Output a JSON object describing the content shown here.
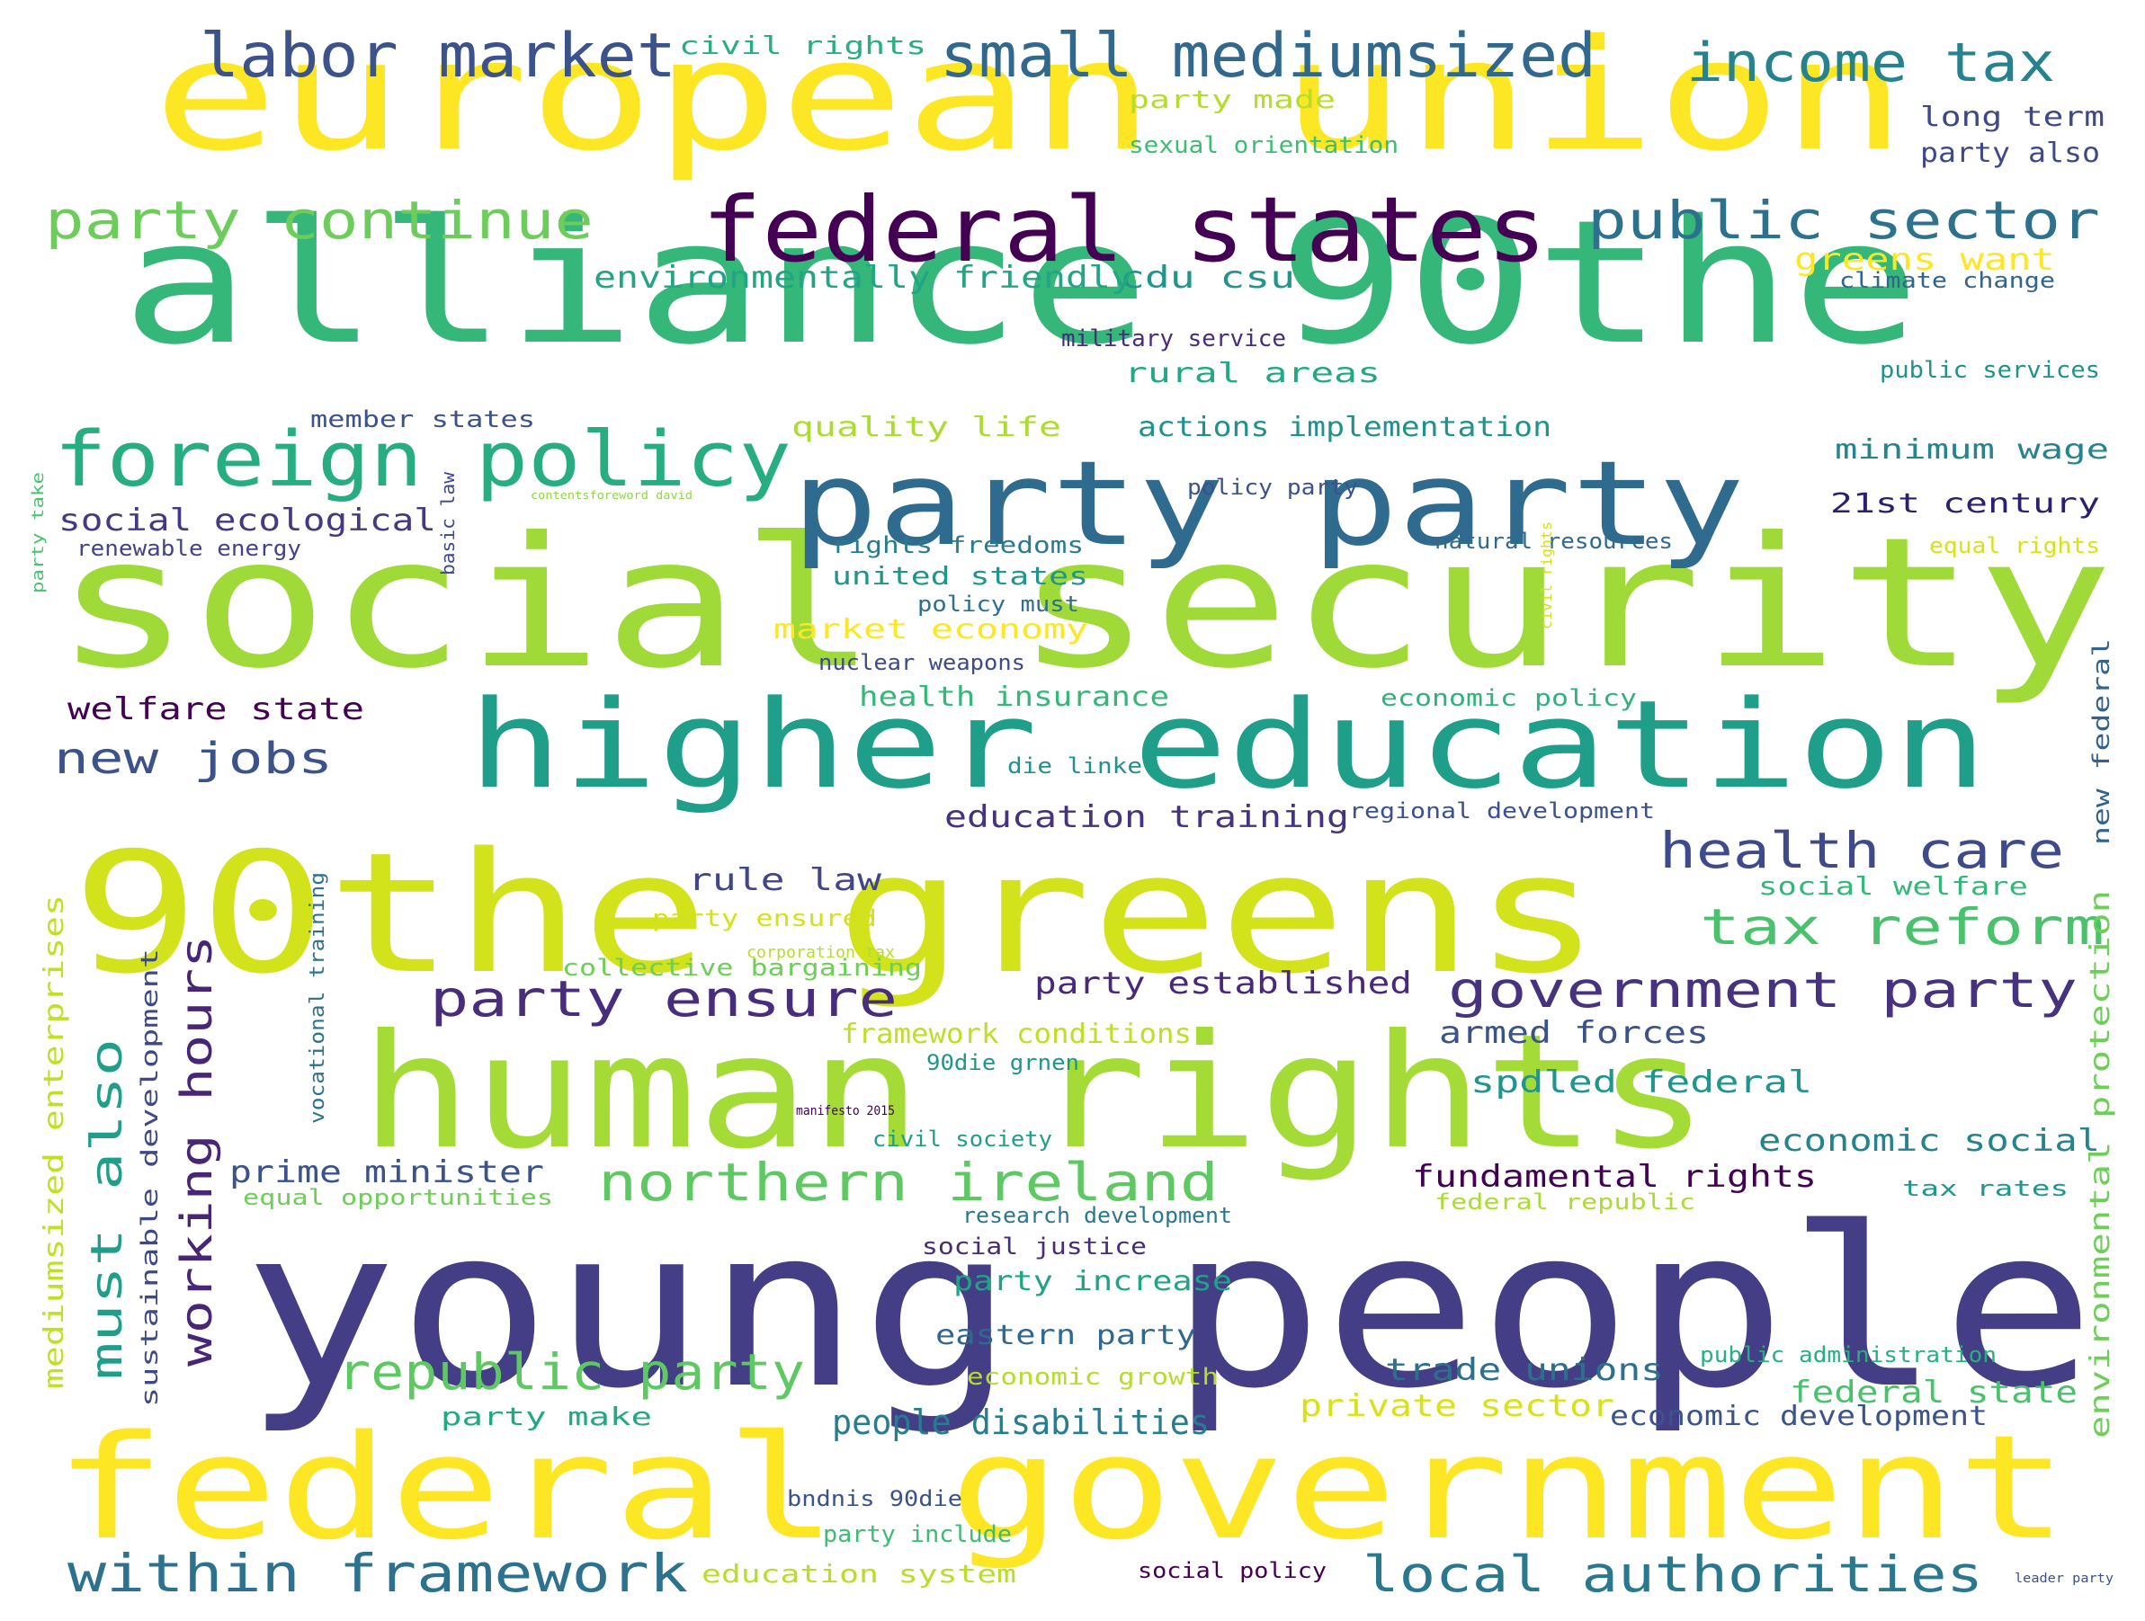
{
  "words": [
    {
      "id": "european-union",
      "text": "european union",
      "color": "#fde725"
    },
    {
      "id": "alliance-90the",
      "text": "alliance 90the",
      "color": "#35b779"
    },
    {
      "id": "social-security",
      "text": "social security",
      "color": "#a0da39"
    },
    {
      "id": "90the-greens",
      "text": "90the greens",
      "color": "#d2e21b"
    },
    {
      "id": "human-rights",
      "text": "human rights",
      "color": "#a5db36"
    },
    {
      "id": "young-people",
      "text": "young people",
      "color": "#433e85"
    },
    {
      "id": "federal-government",
      "text": "federal government",
      "color": "#fde725"
    },
    {
      "id": "higher-education",
      "text": "higher education",
      "color": "#1f9e89"
    },
    {
      "id": "party-party",
      "text": "party party",
      "color": "#2f6b8e"
    },
    {
      "id": "federal-states",
      "text": "federal states",
      "color": "#440154"
    },
    {
      "id": "foreign-policy",
      "text": "foreign policy",
      "color": "#27ad81"
    },
    {
      "id": "labor-market",
      "text": "labor market",
      "color": "#3b528b"
    },
    {
      "id": "small-mediumsized",
      "text": "small mediumsized",
      "color": "#31688e"
    },
    {
      "id": "income-tax",
      "text": "income tax",
      "color": "#26828e"
    },
    {
      "id": "party-continue",
      "text": "party continue",
      "color": "#6ccd5a"
    },
    {
      "id": "public-sector",
      "text": "public sector",
      "color": "#2c728e"
    },
    {
      "id": "health-care",
      "text": "health care",
      "color": "#3e4a89"
    },
    {
      "id": "tax-reform",
      "text": "tax reform",
      "color": "#4ac16d"
    },
    {
      "id": "government-party",
      "text": "government party",
      "color": "#46327e"
    },
    {
      "id": "party-ensure",
      "text": "party ensure",
      "color": "#472d7b"
    },
    {
      "id": "northern-ireland",
      "text": "northern ireland",
      "color": "#5ec962"
    },
    {
      "id": "within-framework",
      "text": "within framework",
      "color": "#2c728e"
    },
    {
      "id": "local-authorities",
      "text": "local authorities",
      "color": "#2a788e"
    },
    {
      "id": "republic-party",
      "text": "republic party",
      "color": "#5ec962"
    },
    {
      "id": "new-jobs",
      "text": "new jobs",
      "color": "#3b528b"
    },
    {
      "id": "must-also",
      "text": "must also",
      "color": "#1f9e89"
    },
    {
      "id": "working-hours",
      "text": "working hours",
      "color": "#482677"
    },
    {
      "id": "people-disabilities",
      "text": "people disabilities",
      "color": "#287c8e"
    },
    {
      "id": "greens-want",
      "text": "greens want",
      "color": "#fde725"
    },
    {
      "id": "cdu-csu",
      "text": "cdu csu",
      "color": "#1f958b"
    },
    {
      "id": "environmentally-friendly",
      "text": "environmentally friendly",
      "color": "#21a585"
    },
    {
      "id": "social-ecological",
      "text": "social ecological",
      "color": "#443983"
    },
    {
      "id": "renewable-energy",
      "text": "renewable energy",
      "color": "#414487"
    },
    {
      "id": "welfare-state",
      "text": "welfare state",
      "color": "#440154"
    },
    {
      "id": "long-term",
      "text": "long term",
      "color": "#3e4989"
    },
    {
      "id": "party-also",
      "text": "party also",
      "color": "#3e4989"
    },
    {
      "id": "party-made",
      "text": "party made",
      "color": "#b5de2b"
    },
    {
      "id": "sexual-orientation",
      "text": "sexual orientation",
      "color": "#3dbc74"
    },
    {
      "id": "civil-rights",
      "text": "civil rights",
      "color": "#29af7f"
    },
    {
      "id": "climate-change",
      "text": "climate change",
      "color": "#32648e"
    },
    {
      "id": "military-service",
      "text": "military service",
      "color": "#472d7b"
    },
    {
      "id": "rural-areas",
      "text": "rural areas",
      "color": "#22a884"
    },
    {
      "id": "public-services",
      "text": "public services",
      "color": "#20928c"
    },
    {
      "id": "member-states",
      "text": "member states",
      "color": "#3b528b"
    },
    {
      "id": "quality-life",
      "text": "quality life",
      "color": "#addc30"
    },
    {
      "id": "actions-implementation",
      "text": "actions implementation",
      "color": "#21918c"
    },
    {
      "id": "minimum-wage",
      "text": "minimum wage",
      "color": "#25848e"
    },
    {
      "id": "21st-century",
      "text": "21st century",
      "color": "#2d1e6e"
    },
    {
      "id": "policy-party",
      "text": "policy party",
      "color": "#3b528b"
    },
    {
      "id": "rights-freedoms",
      "text": "rights freedoms",
      "color": "#297b8e"
    },
    {
      "id": "united-states",
      "text": "united states",
      "color": "#1f958b"
    },
    {
      "id": "natural-resources",
      "text": "natural resources",
      "color": "#31688e"
    },
    {
      "id": "equal-rights",
      "text": "equal rights",
      "color": "#d8e219"
    },
    {
      "id": "policy-must",
      "text": "policy must",
      "color": "#2d708e"
    },
    {
      "id": "market-economy",
      "text": "market economy",
      "color": "#fde725"
    },
    {
      "id": "nuclear-weapons",
      "text": "nuclear weapons",
      "color": "#3e4a89"
    },
    {
      "id": "health-insurance",
      "text": "health insurance",
      "color": "#35b779"
    },
    {
      "id": "economic-policy",
      "text": "economic policy",
      "color": "#2eb37c"
    },
    {
      "id": "die-linke",
      "text": "die linke",
      "color": "#21918c"
    },
    {
      "id": "education-training",
      "text": "education training",
      "color": "#46327e"
    },
    {
      "id": "regional-development",
      "text": "regional development",
      "color": "#3b528b"
    },
    {
      "id": "rule-law",
      "text": "rule law",
      "color": "#404688"
    },
    {
      "id": "party-ensured",
      "text": "party ensured",
      "color": "#d2e21b"
    },
    {
      "id": "collective-bargaining",
      "text": "collective bargaining",
      "color": "#6ece58"
    },
    {
      "id": "party-established",
      "text": "party established",
      "color": "#482878"
    },
    {
      "id": "framework-conditions",
      "text": "framework conditions",
      "color": "#bddf26"
    },
    {
      "id": "armed-forces",
      "text": "armed forces",
      "color": "#3b528b"
    },
    {
      "id": "90die-grnen",
      "text": "90die grnen",
      "color": "#1f968b"
    },
    {
      "id": "spdled-federal",
      "text": "spdled federal",
      "color": "#1f958b"
    },
    {
      "id": "social-welfare",
      "text": "social welfare",
      "color": "#35b779"
    },
    {
      "id": "civil-society",
      "text": "civil society",
      "color": "#1f9f88"
    },
    {
      "id": "economic-social",
      "text": "economic social",
      "color": "#25838e"
    },
    {
      "id": "prime-minister",
      "text": "prime minister",
      "color": "#3b528b"
    },
    {
      "id": "equal-opportunities",
      "text": "equal opportunities",
      "color": "#6ece58"
    },
    {
      "id": "fundamental-rights",
      "text": "fundamental rights",
      "color": "#440154"
    },
    {
      "id": "federal-republic",
      "text": "federal republic",
      "color": "#addc30"
    },
    {
      "id": "tax-rates",
      "text": "tax rates",
      "color": "#1f968b"
    },
    {
      "id": "research-development",
      "text": "research development",
      "color": "#2a788e"
    },
    {
      "id": "social-justice",
      "text": "social justice",
      "color": "#472c7a"
    },
    {
      "id": "party-increase",
      "text": "party increase",
      "color": "#20a386"
    },
    {
      "id": "eastern-party",
      "text": "eastern party",
      "color": "#31688e"
    },
    {
      "id": "economic-growth",
      "text": "economic growth",
      "color": "#b5de2b"
    },
    {
      "id": "trade-unions",
      "text": "trade unions",
      "color": "#2d708e"
    },
    {
      "id": "public-administration",
      "text": "public administration",
      "color": "#29af7f"
    },
    {
      "id": "federal-state",
      "text": "federal state",
      "color": "#4ac16d"
    },
    {
      "id": "private-sector",
      "text": "private sector",
      "color": "#d8e219"
    },
    {
      "id": "economic-development",
      "text": "economic development",
      "color": "#3b528b"
    },
    {
      "id": "party-make",
      "text": "party make",
      "color": "#22a884"
    },
    {
      "id": "bndnis-90die",
      "text": "bndnis 90die",
      "color": "#3b528b"
    },
    {
      "id": "party-include",
      "text": "party include",
      "color": "#3dbc74"
    },
    {
      "id": "education-system",
      "text": "education system",
      "color": "#b8de29"
    },
    {
      "id": "social-policy",
      "text": "social policy",
      "color": "#440154"
    },
    {
      "id": "mediumsized-enterprises",
      "text": "mediumsized enterprises",
      "color": "#c2df23"
    },
    {
      "id": "sustainable-development",
      "text": "sustainable development",
      "color": "#3e4989"
    },
    {
      "id": "vocational-training",
      "text": "vocational training",
      "color": "#2c728e"
    },
    {
      "id": "environmental-protection",
      "text": "environmental protection",
      "color": "#6ece58"
    },
    {
      "id": "new-federal",
      "text": "new federal",
      "color": "#33638d"
    },
    {
      "id": "corporation-tax",
      "text": "corporation tax",
      "color": "#b5de2b"
    },
    {
      "id": "basic-law",
      "text": "basic law",
      "color": "#3e4a89"
    },
    {
      "id": "party-take",
      "text": "party take",
      "color": "#4ac16d"
    },
    {
      "id": "manifesto-2015",
      "text": "manifesto 2015",
      "color": "#440154"
    },
    {
      "id": "contentsforeword-david",
      "text": "contentsforeword david",
      "color": "#8fd744"
    },
    {
      "id": "leader-party",
      "text": "leader party",
      "color": "#3b528b"
    },
    {
      "id": "civilrights-vertical",
      "text": "civil rights",
      "color": "#d2e21b"
    }
  ]
}
